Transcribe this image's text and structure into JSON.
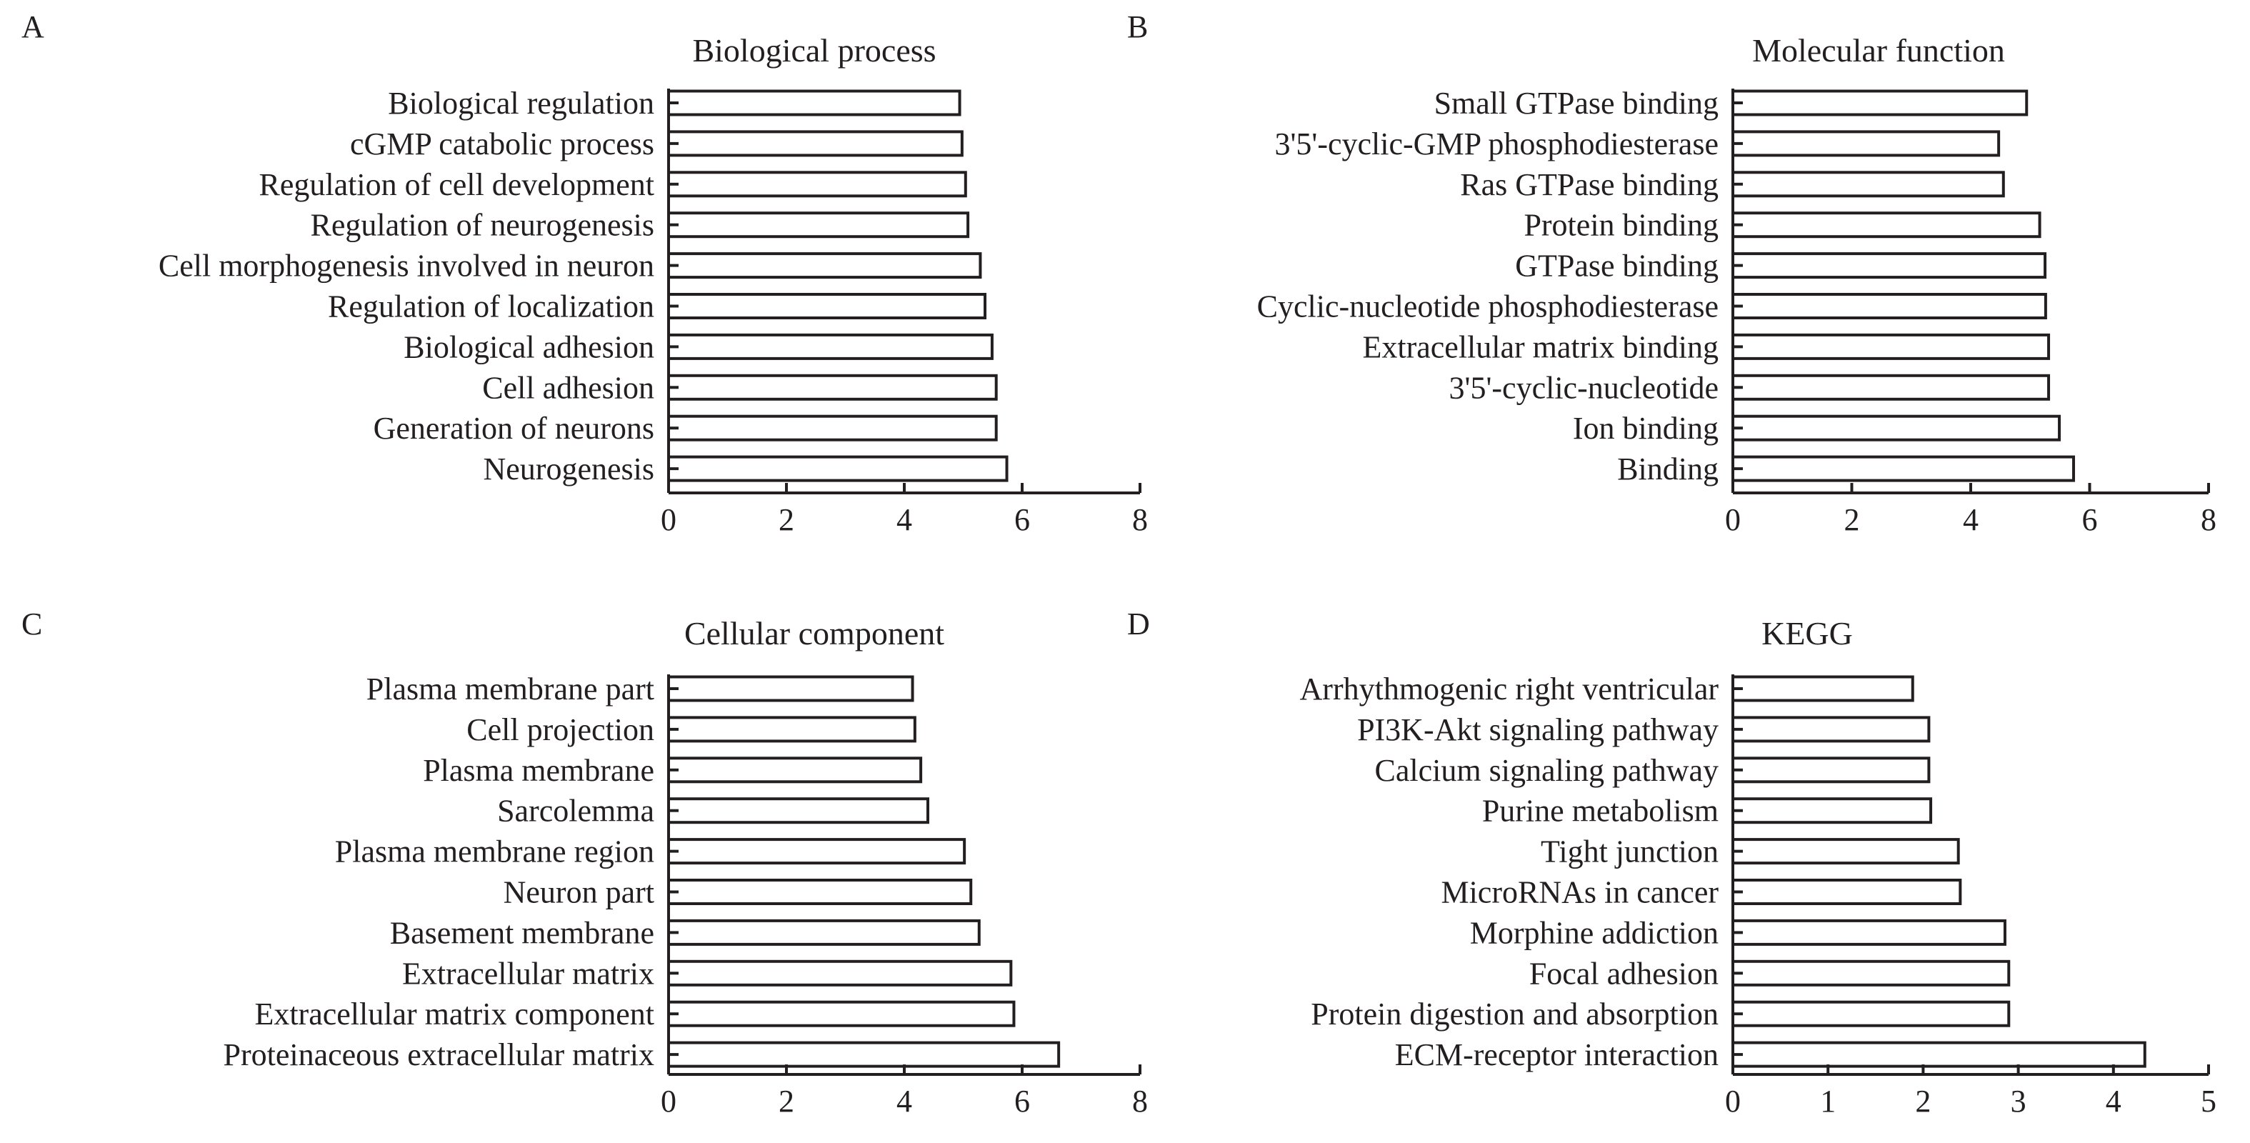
{
  "chart_data": [
    {
      "panel": "A",
      "type": "bar",
      "orientation": "horizontal",
      "title": "Biological process",
      "categories": [
        "Biological regulation",
        "cGMP catabolic process",
        "Regulation of cell development",
        "Regulation of neurogenesis",
        "Cell morphogenesis involved in neuron",
        "Regulation of localization",
        "Biological adhesion",
        "Cell adhesion",
        "Generation of neurons",
        "Neurogenesis"
      ],
      "values": [
        4.94,
        4.98,
        5.04,
        5.08,
        5.29,
        5.37,
        5.49,
        5.56,
        5.56,
        5.74
      ],
      "xlim": [
        0,
        8
      ],
      "xticks": [
        "0",
        "2",
        "4",
        "6",
        "8"
      ],
      "grid": false,
      "colors": {
        "fill": "#ffffff",
        "stroke": "#231f20"
      }
    },
    {
      "panel": "B",
      "type": "bar",
      "orientation": "horizontal",
      "title": "Molecular function",
      "categories": [
        "Small GTPase binding",
        "3'5'-cyclic-GMP phosphodiesterase",
        "Ras GTPase binding",
        "Protein binding",
        "GTPase binding",
        "Cyclic-nucleotide phosphodiesterase",
        "Extracellular matrix binding",
        "3'5'-cyclic-nucleotide",
        "Ion binding",
        "Binding"
      ],
      "values": [
        4.94,
        4.47,
        4.55,
        5.16,
        5.25,
        5.26,
        5.31,
        5.31,
        5.49,
        5.73
      ],
      "xlim": [
        0,
        8
      ],
      "xticks": [
        "0",
        "2",
        "4",
        "6",
        "8"
      ],
      "grid": false,
      "colors": {
        "fill": "#ffffff",
        "stroke": "#231f20"
      }
    },
    {
      "panel": "C",
      "type": "bar",
      "orientation": "horizontal",
      "title": "Cellular component",
      "categories": [
        "Plasma membrane part",
        "Cell projection",
        "Plasma membrane",
        "Sarcolemma",
        "Plasma membrane region",
        "Neuron part",
        "Basement membrane",
        "Extracellular matrix",
        "Extracellular matrix component",
        "Proteinaceous extracellular matrix"
      ],
      "values": [
        4.14,
        4.18,
        4.28,
        4.4,
        5.02,
        5.13,
        5.27,
        5.81,
        5.86,
        6.62
      ],
      "xlim": [
        0,
        8
      ],
      "xticks": [
        "0",
        "2",
        "4",
        "6",
        "8"
      ],
      "grid": false,
      "colors": {
        "fill": "#ffffff",
        "stroke": "#231f20"
      }
    },
    {
      "panel": "D",
      "type": "bar",
      "orientation": "horizontal",
      "title": "KEGG",
      "categories": [
        "Arrhythmogenic right ventricular",
        "PI3K-Akt signaling pathway",
        "Calcium signaling pathway",
        "Purine metabolism",
        "Tight junction",
        "MicroRNAs in cancer",
        "Morphine addiction",
        "Focal adhesion",
        "Protein digestion and absorption",
        "ECM-receptor interaction"
      ],
      "values": [
        1.89,
        2.06,
        2.06,
        2.08,
        2.37,
        2.39,
        2.86,
        2.9,
        2.9,
        4.33
      ],
      "xlim": [
        0,
        5
      ],
      "xticks": [
        "0",
        "1",
        "2",
        "3",
        "4",
        "5"
      ],
      "grid": false,
      "colors": {
        "fill": "#ffffff",
        "stroke": "#231f20"
      }
    }
  ]
}
